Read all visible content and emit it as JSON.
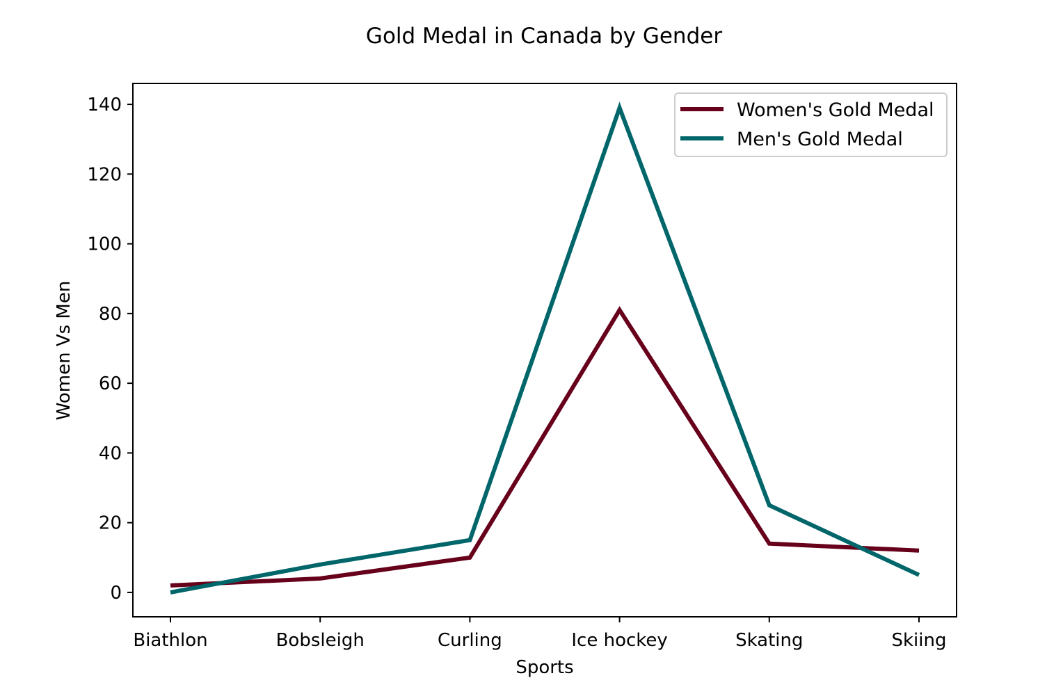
{
  "chart_data": {
    "type": "line",
    "title": "Gold Medal in Canada by Gender",
    "xlabel": "Sports",
    "ylabel": "Women Vs Men",
    "categories": [
      "Biathlon",
      "Bobsleigh",
      "Curling",
      "Ice hockey",
      "Skating",
      "Skiing"
    ],
    "series": [
      {
        "name": "Women's Gold Medal",
        "color": "#67001a",
        "values": [
          2,
          4,
          10,
          81,
          14,
          12
        ]
      },
      {
        "name": "Men's Gold Medal",
        "color": "#00666a",
        "values": [
          0,
          8,
          15,
          139,
          25,
          5
        ]
      }
    ],
    "ylim": [
      -7,
      146
    ],
    "yticks": [
      0,
      20,
      40,
      60,
      80,
      100,
      120,
      140
    ],
    "grid": false,
    "legend_position": "top-right"
  }
}
